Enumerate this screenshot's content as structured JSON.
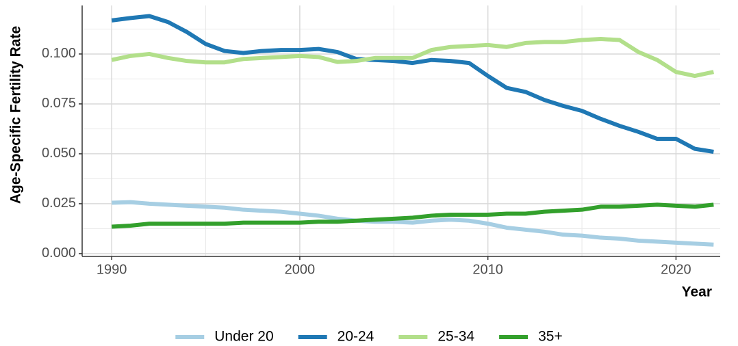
{
  "chart_data": {
    "type": "line",
    "x_label": "Year",
    "y_label": "Age-Specific Fertility Rate",
    "x": [
      1990,
      1991,
      1992,
      1993,
      1994,
      1995,
      1996,
      1997,
      1998,
      1999,
      2000,
      2001,
      2002,
      2003,
      2004,
      2005,
      2006,
      2007,
      2008,
      2009,
      2010,
      2011,
      2012,
      2013,
      2014,
      2015,
      2016,
      2017,
      2018,
      2019,
      2020,
      2021,
      2022
    ],
    "series": [
      {
        "name": "Under 20",
        "color": "#a6cee3",
        "values": [
          0.0255,
          0.0258,
          0.025,
          0.0245,
          0.024,
          0.0235,
          0.023,
          0.022,
          0.0215,
          0.021,
          0.02,
          0.019,
          0.0175,
          0.0165,
          0.016,
          0.016,
          0.0155,
          0.0165,
          0.017,
          0.0165,
          0.015,
          0.013,
          0.012,
          0.011,
          0.0095,
          0.009,
          0.008,
          0.0075,
          0.0065,
          0.006,
          0.0055,
          0.005,
          0.0045
        ]
      },
      {
        "name": "20-24",
        "color": "#1f78b4",
        "values": [
          0.1168,
          0.118,
          0.119,
          0.116,
          0.111,
          0.105,
          0.1015,
          0.1005,
          0.1015,
          0.102,
          0.102,
          0.1025,
          0.101,
          0.0975,
          0.097,
          0.0965,
          0.0955,
          0.097,
          0.0965,
          0.0955,
          0.089,
          0.083,
          0.081,
          0.077,
          0.074,
          0.0715,
          0.0675,
          0.064,
          0.061,
          0.0575,
          0.0575,
          0.0525,
          0.051
        ]
      },
      {
        "name": "25-34",
        "color": "#b2df8a",
        "values": [
          0.097,
          0.099,
          0.1,
          0.098,
          0.0965,
          0.0958,
          0.0958,
          0.0975,
          0.098,
          0.0985,
          0.099,
          0.0985,
          0.096,
          0.0965,
          0.098,
          0.098,
          0.098,
          0.102,
          0.1035,
          0.104,
          0.1045,
          0.1035,
          0.1055,
          0.106,
          0.106,
          0.107,
          0.1075,
          0.107,
          0.101,
          0.097,
          0.091,
          0.089,
          0.091
        ]
      },
      {
        "name": "35+",
        "color": "#33a02c",
        "values": [
          0.0135,
          0.014,
          0.015,
          0.015,
          0.015,
          0.015,
          0.015,
          0.0155,
          0.0155,
          0.0155,
          0.0155,
          0.016,
          0.016,
          0.0165,
          0.017,
          0.0175,
          0.018,
          0.019,
          0.0195,
          0.0195,
          0.0195,
          0.02,
          0.02,
          0.021,
          0.0215,
          0.022,
          0.0235,
          0.0235,
          0.024,
          0.0245,
          0.024,
          0.0235,
          0.0245
        ]
      }
    ],
    "xlim": [
      1988.43,
      2022.35
    ],
    "ylim": [
      -0.0014,
      0.1243
    ],
    "xticks": [
      1990,
      2000,
      2010,
      2020
    ],
    "yticks": [
      {
        "value": 0,
        "label": "0.000"
      },
      0.025,
      {
        "value": 0.05,
        "label": "0.050"
      },
      0.075,
      {
        "value": 0.1,
        "label": "0.100"
      }
    ],
    "grid": true,
    "legend": "bottom"
  }
}
